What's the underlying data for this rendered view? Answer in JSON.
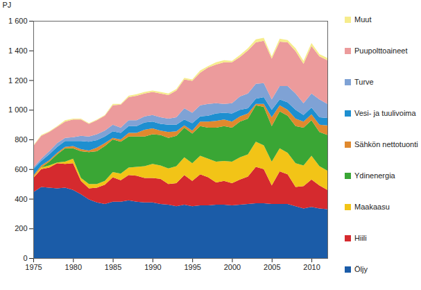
{
  "chart_data": {
    "type": "area",
    "stacked": true,
    "y_label": "PJ",
    "x": [
      1975,
      1976,
      1977,
      1978,
      1979,
      1980,
      1981,
      1982,
      1983,
      1984,
      1985,
      1986,
      1987,
      1988,
      1989,
      1990,
      1991,
      1992,
      1993,
      1994,
      1995,
      1996,
      1997,
      1998,
      1999,
      2000,
      2001,
      2002,
      2003,
      2004,
      2005,
      2006,
      2007,
      2008,
      2009,
      2010,
      2011,
      2012
    ],
    "xlim": [
      1975,
      2012
    ],
    "xticks": [
      1975,
      1980,
      1985,
      1990,
      1995,
      2000,
      2005,
      2010
    ],
    "ylim": [
      0,
      1600
    ],
    "yticks": [
      0,
      200,
      400,
      600,
      800,
      {
        "value": 1000,
        "label": "1 000"
      },
      {
        "value": 1200,
        "label": "1 200"
      },
      {
        "value": 1400,
        "label": "1 400"
      },
      {
        "value": 1600,
        "label": "1 600"
      }
    ],
    "grid": false,
    "legend": "right",
    "series": [
      {
        "name": "Öljy",
        "color": "#1b5ca8",
        "values": [
          445,
          480,
          475,
          470,
          475,
          460,
          430,
          395,
          375,
          365,
          380,
          380,
          390,
          380,
          375,
          375,
          365,
          360,
          350,
          360,
          350,
          355,
          355,
          360,
          360,
          355,
          360,
          365,
          370,
          370,
          365,
          365,
          365,
          350,
          335,
          345,
          335,
          330
        ]
      },
      {
        "name": "Hiili",
        "color": "#d52a2e",
        "values": [
          95,
          120,
          135,
          170,
          160,
          180,
          90,
          75,
          100,
          130,
          165,
          145,
          170,
          175,
          165,
          165,
          170,
          140,
          155,
          200,
          170,
          210,
          190,
          150,
          160,
          150,
          170,
          185,
          245,
          230,
          125,
          220,
          200,
          130,
          150,
          185,
          155,
          130
        ]
      },
      {
        "name": "Maakaasu",
        "color": "#f2c417",
        "values": [
          5,
          10,
          15,
          5,
          15,
          30,
          20,
          30,
          25,
          25,
          35,
          45,
          50,
          60,
          80,
          95,
          90,
          105,
          115,
          120,
          120,
          125,
          125,
          140,
          135,
          145,
          150,
          150,
          170,
          160,
          160,
          155,
          145,
          160,
          140,
          160,
          130,
          130
        ]
      },
      {
        "name": "Ydinenergia",
        "color": "#3aa635",
        "values": [
          0,
          0,
          25,
          55,
          90,
          70,
          180,
          215,
          220,
          235,
          220,
          215,
          210,
          205,
          200,
          200,
          205,
          205,
          205,
          200,
          200,
          200,
          210,
          230,
          235,
          230,
          240,
          240,
          245,
          260,
          240,
          250,
          250,
          250,
          255,
          240,
          230,
          240
        ]
      },
      {
        "name": "Sähkön nettotuonti",
        "color": "#e0892e",
        "values": [
          10,
          15,
          10,
          10,
          10,
          15,
          15,
          10,
          25,
          20,
          10,
          15,
          25,
          25,
          45,
          40,
          30,
          40,
          30,
          15,
          20,
          30,
          40,
          45,
          45,
          40,
          35,
          35,
          10,
          20,
          60,
          40,
          40,
          50,
          40,
          40,
          50,
          65
        ]
      },
      {
        "name": "Vesi- ja tuulivoima",
        "color": "#1e8fd0",
        "values": [
          45,
          30,
          40,
          40,
          40,
          35,
          55,
          60,
          50,
          45,
          45,
          45,
          45,
          45,
          50,
          45,
          45,
          50,
          45,
          40,
          50,
          35,
          40,
          50,
          45,
          55,
          45,
          35,
          35,
          45,
          50,
          40,
          50,
          60,
          45,
          45,
          50,
          50
        ]
      },
      {
        "name": "Turve",
        "color": "#7fa2d5",
        "values": [
          10,
          15,
          20,
          25,
          20,
          25,
          35,
          35,
          40,
          40,
          45,
          35,
          40,
          40,
          40,
          45,
          45,
          40,
          50,
          75,
          70,
          75,
          80,
          70,
          60,
          70,
          90,
          100,
          100,
          95,
          70,
          90,
          110,
          110,
          80,
          95,
          120,
          95
        ]
      },
      {
        "name": "Puupolttoaineet",
        "color": "#ec9b9c",
        "values": [
          145,
          155,
          130,
          110,
          110,
          120,
          110,
          85,
          95,
          100,
          130,
          155,
          155,
          165,
          155,
          155,
          160,
          160,
          180,
          195,
          215,
          220,
          245,
          260,
          280,
          275,
          265,
          290,
          280,
          285,
          275,
          300,
          295,
          285,
          265,
          320,
          290,
          295
        ]
      },
      {
        "name": "Muut",
        "color": "#f6ec8c",
        "values": [
          5,
          5,
          5,
          5,
          10,
          5,
          5,
          5,
          5,
          5,
          10,
          5,
          10,
          10,
          10,
          10,
          10,
          10,
          10,
          10,
          10,
          15,
          10,
          15,
          15,
          10,
          15,
          15,
          20,
          20,
          15,
          20,
          15,
          20,
          20,
          20,
          15,
          15
        ]
      }
    ]
  }
}
